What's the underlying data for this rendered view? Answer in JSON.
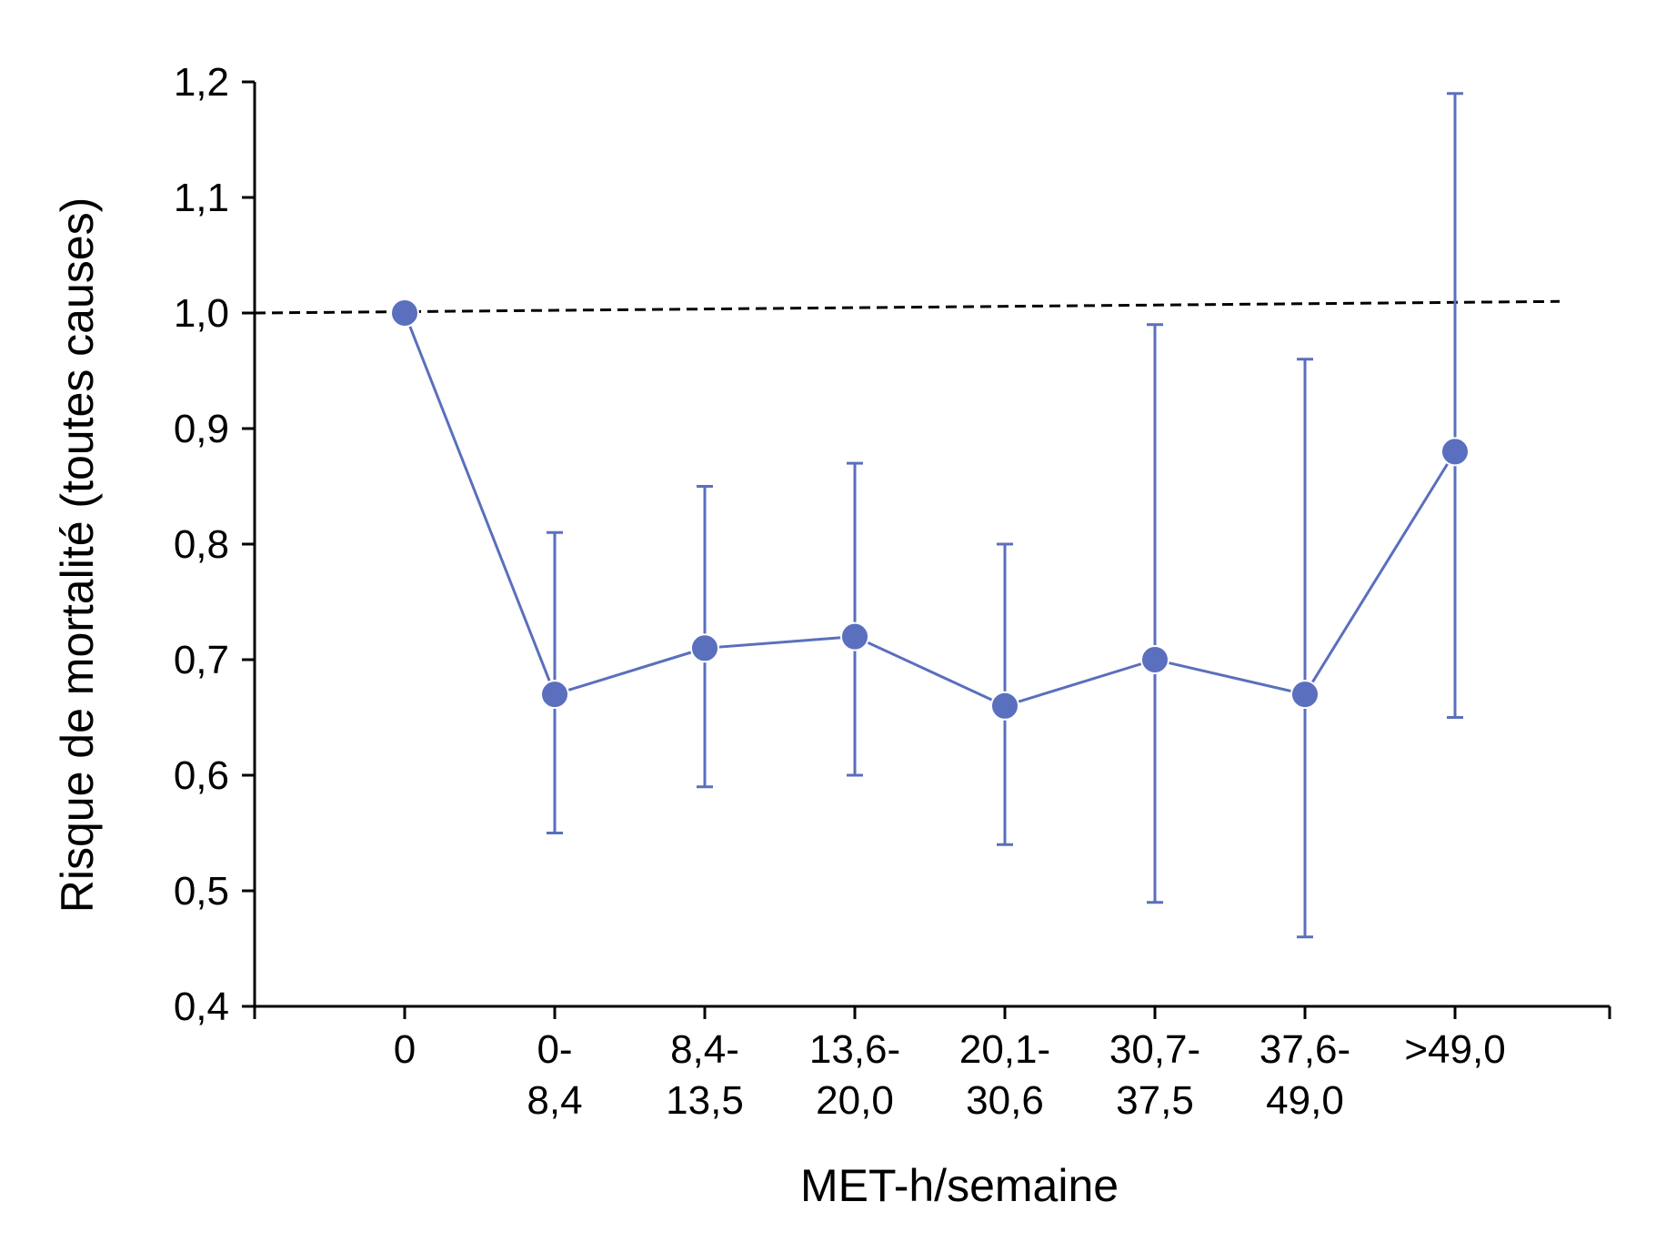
{
  "chart_data": {
    "type": "line",
    "title": "",
    "xlabel": "MET-h/semaine",
    "ylabel": "Risque de mortalité (toutes causes)",
    "ylim": [
      0.4,
      1.2
    ],
    "yticks": [
      "0,4",
      "0,5",
      "0,6",
      "0,7",
      "0,8",
      "0,9",
      "1,0",
      "1,1",
      "1,2"
    ],
    "categories": [
      [
        "0"
      ],
      [
        "0-",
        "8,4"
      ],
      [
        "8,4-",
        "13,5"
      ],
      [
        "13,6-",
        "20,0"
      ],
      [
        "20,1-",
        "30,6"
      ],
      [
        "30,7-",
        "37,5"
      ],
      [
        "37,6-",
        "49,0"
      ],
      [
        ">49,0"
      ]
    ],
    "series": [
      {
        "values": [
          1.0,
          0.67,
          0.71,
          0.72,
          0.66,
          0.7,
          0.67,
          0.88
        ],
        "error_low": [
          null,
          0.55,
          0.59,
          0.6,
          0.54,
          0.49,
          0.46,
          0.65
        ],
        "error_high": [
          null,
          0.81,
          0.85,
          0.87,
          0.8,
          0.99,
          0.96,
          1.19
        ],
        "color": "#5a6fbd"
      }
    ],
    "reference_line": {
      "style": "dashed",
      "color": "#000000",
      "y_start": 1.0,
      "y_end": 1.01
    },
    "grid": false,
    "legend": "none"
  }
}
